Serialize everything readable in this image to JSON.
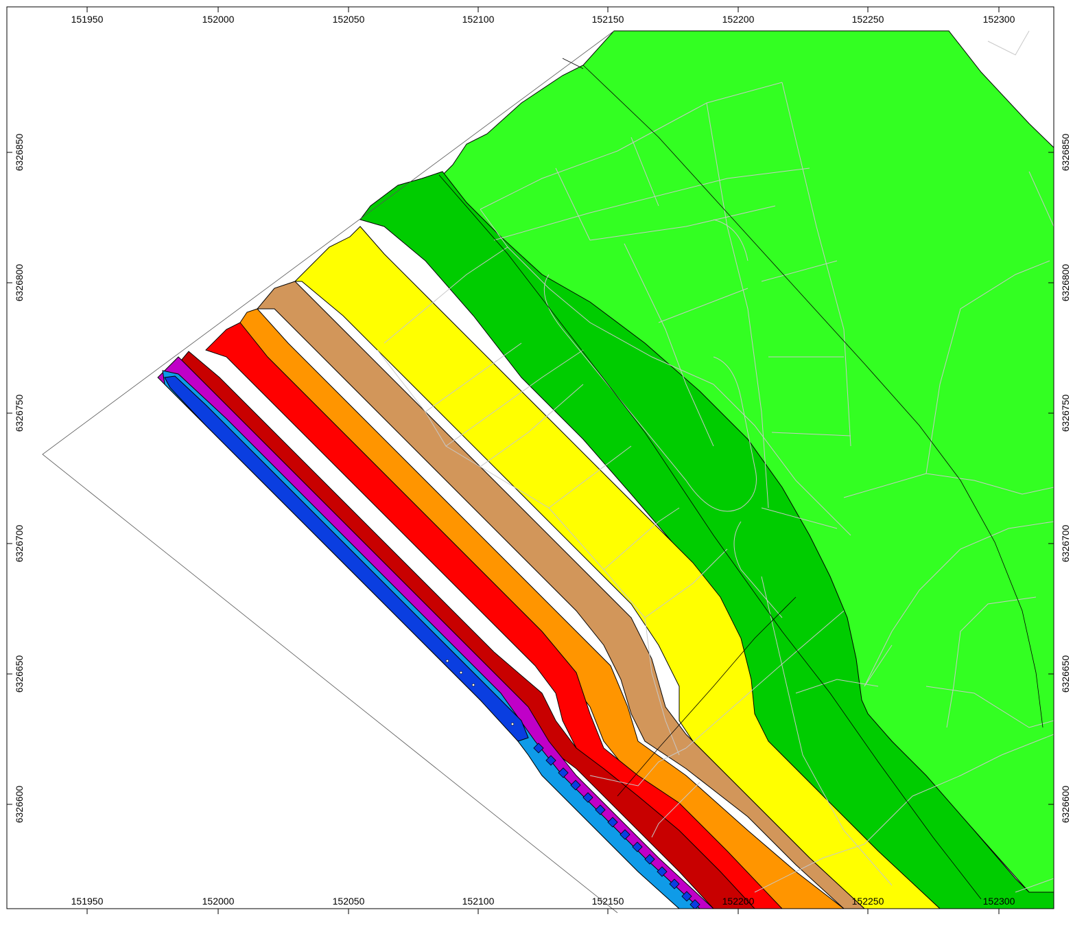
{
  "map": {
    "type": "noise-contour-map",
    "colors": {
      "blue_dark": "#0a3ee0",
      "blue_light": "#0f9be8",
      "magenta": "#c000c8",
      "red_dark": "#c80000",
      "red": "#ff0000",
      "orange": "#ff9500",
      "tan": "#d2965a",
      "yellow": "#ffff00",
      "green_dark": "#00cc00",
      "green_light": "#33ff22",
      "overlay_lines": "#c8c8c8"
    },
    "axes": {
      "x_ticks": [
        "151950",
        "152000",
        "152050",
        "152100",
        "152150",
        "152200",
        "152250",
        "152300"
      ],
      "y_ticks": [
        "6326850",
        "6326800",
        "6326750",
        "6326700",
        "6326650",
        "6326600"
      ]
    }
  }
}
